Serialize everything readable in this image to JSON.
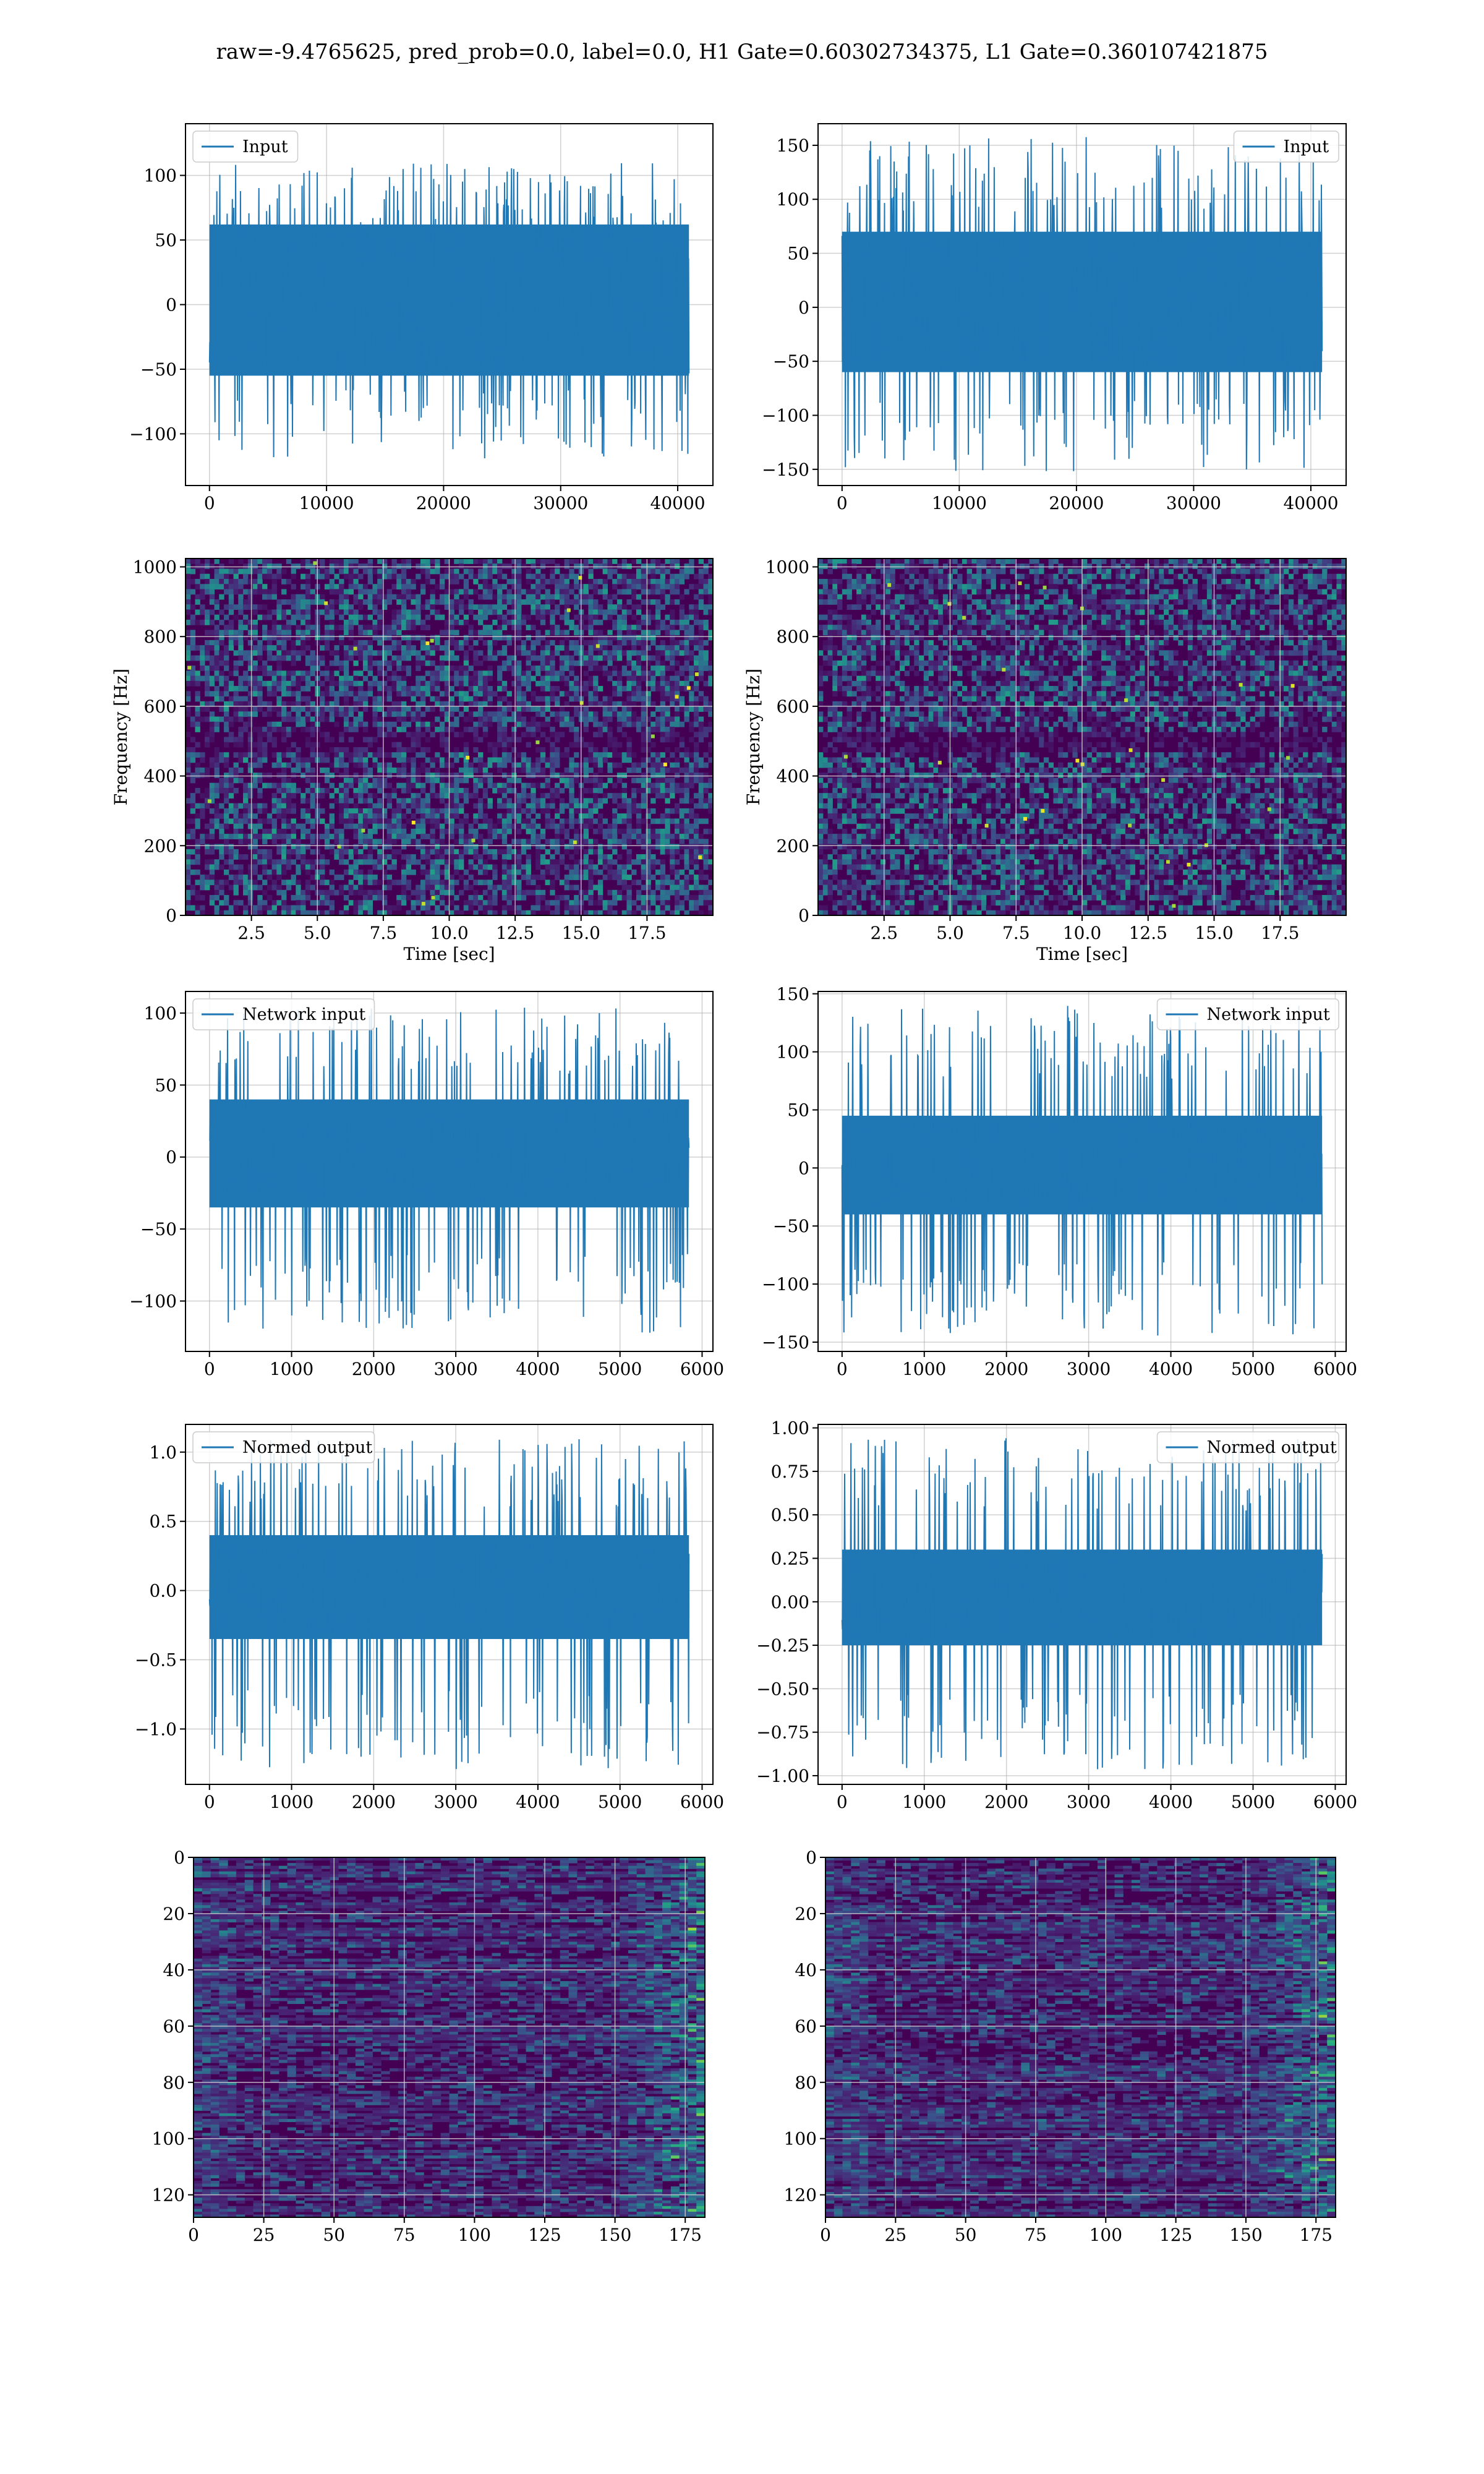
{
  "figure": {
    "title": "raw=-9.4765625, pred_prob=0.0, label=0.0, H1 Gate=0.60302734375, L1 Gate=0.360107421875"
  },
  "colors": {
    "line": "#1f77b4",
    "viridis_dark": "#440154",
    "viridis_mid": "#21918c",
    "viridis_bright": "#fde725",
    "grid": "#b0b0b0"
  },
  "chart_data": [
    {
      "id": "h1-input",
      "type": "line",
      "row": 1,
      "col": 1,
      "series": [
        {
          "name": "Input",
          "envelope_core": [
            -55,
            62
          ],
          "extreme_range": [
            -120,
            110
          ]
        }
      ],
      "x_count": 40960,
      "xlim": [
        -2048,
        43008
      ],
      "ylim": [
        -140,
        140
      ],
      "xticks": [
        0,
        10000,
        20000,
        30000,
        40000
      ],
      "yticks": [
        -100,
        -50,
        0,
        50,
        100
      ],
      "legend": "top-left",
      "grid": true,
      "xlabel": "",
      "ylabel": ""
    },
    {
      "id": "l1-input",
      "type": "line",
      "row": 1,
      "col": 2,
      "series": [
        {
          "name": "Input",
          "envelope_core": [
            -60,
            70
          ],
          "extreme_range": [
            -152,
            158
          ]
        }
      ],
      "x_count": 40960,
      "xlim": [
        -2048,
        43008
      ],
      "ylim": [
        -165,
        170
      ],
      "xticks": [
        0,
        10000,
        20000,
        30000,
        40000
      ],
      "yticks": [
        -150,
        -100,
        -50,
        0,
        50,
        100,
        150
      ],
      "legend": "top-right",
      "grid": true,
      "xlabel": "",
      "ylabel": ""
    },
    {
      "id": "h1-spectrogram",
      "type": "heatmap",
      "row": 2,
      "col": 1,
      "colormap": "viridis",
      "xlim": [
        0,
        20
      ],
      "ylim": [
        0,
        1024
      ],
      "xticks": [
        2.5,
        5.0,
        7.5,
        10.0,
        12.5,
        15.0,
        17.5
      ],
      "yticks": [
        0,
        200,
        400,
        600,
        800,
        1000
      ],
      "xlabel": "Time [sec]",
      "ylabel": "Frequency [Hz]",
      "grid": true
    },
    {
      "id": "l1-spectrogram",
      "type": "heatmap",
      "row": 2,
      "col": 2,
      "colormap": "viridis",
      "xlim": [
        0,
        20
      ],
      "ylim": [
        0,
        1024
      ],
      "xticks": [
        2.5,
        5.0,
        7.5,
        10.0,
        12.5,
        15.0,
        17.5
      ],
      "yticks": [
        0,
        200,
        400,
        600,
        800,
        1000
      ],
      "xlabel": "Time [sec]",
      "ylabel": "Frequency [Hz]",
      "grid": true
    },
    {
      "id": "h1-network-input",
      "type": "line",
      "row": 3,
      "col": 1,
      "series": [
        {
          "name": "Network input",
          "envelope_core": [
            -35,
            40
          ],
          "extreme_range": [
            -122,
            104
          ]
        }
      ],
      "x_count": 5840,
      "xlim": [
        -292,
        6132
      ],
      "ylim": [
        -135,
        115
      ],
      "xticks": [
        0,
        1000,
        2000,
        3000,
        4000,
        5000,
        6000
      ],
      "yticks": [
        -100,
        -50,
        0,
        50,
        100
      ],
      "legend": "top-left",
      "grid": true,
      "xlabel": "",
      "ylabel": ""
    },
    {
      "id": "l1-network-input",
      "type": "line",
      "row": 3,
      "col": 2,
      "series": [
        {
          "name": "Network input",
          "envelope_core": [
            -40,
            45
          ],
          "extreme_range": [
            -145,
            140
          ]
        }
      ],
      "x_count": 5840,
      "xlim": [
        -292,
        6132
      ],
      "ylim": [
        -158,
        152
      ],
      "xticks": [
        0,
        1000,
        2000,
        3000,
        4000,
        5000,
        6000
      ],
      "yticks": [
        -150,
        -100,
        -50,
        0,
        50,
        100,
        150
      ],
      "legend": "top-right",
      "grid": true,
      "xlabel": "",
      "ylabel": ""
    },
    {
      "id": "h1-normed-output",
      "type": "line",
      "row": 4,
      "col": 1,
      "series": [
        {
          "name": "Normed output",
          "envelope_core": [
            -0.35,
            0.4
          ],
          "extreme_range": [
            -1.3,
            1.1
          ]
        }
      ],
      "x_count": 5840,
      "xlim": [
        -292,
        6132
      ],
      "ylim": [
        -1.4,
        1.2
      ],
      "xticks": [
        0,
        1000,
        2000,
        3000,
        4000,
        5000,
        6000
      ],
      "yticks": [
        -1.0,
        -0.5,
        0.0,
        0.5,
        1.0
      ],
      "legend": "top-left",
      "grid": true,
      "xlabel": "",
      "ylabel": ""
    },
    {
      "id": "l1-normed-output",
      "type": "line",
      "row": 4,
      "col": 2,
      "series": [
        {
          "name": "Normed output",
          "envelope_core": [
            -0.25,
            0.3
          ],
          "extreme_range": [
            -0.97,
            0.95
          ]
        }
      ],
      "x_count": 5840,
      "xlim": [
        -292,
        6132
      ],
      "ylim": [
        -1.05,
        1.02
      ],
      "xticks": [
        0,
        1000,
        2000,
        3000,
        4000,
        5000,
        6000
      ],
      "yticks": [
        -1.0,
        -0.75,
        -0.5,
        -0.25,
        0.0,
        0.25,
        0.5,
        0.75,
        1.0
      ],
      "legend": "top-right",
      "grid": true,
      "xlabel": "",
      "ylabel": ""
    },
    {
      "id": "h1-feature-map",
      "type": "heatmap",
      "row": 5,
      "col": 1,
      "colormap": "viridis",
      "xlim": [
        0,
        182
      ],
      "ylim": [
        128,
        0
      ],
      "xticks": [
        0,
        25,
        50,
        75,
        100,
        125,
        150,
        175
      ],
      "yticks": [
        0,
        20,
        40,
        60,
        80,
        100,
        120
      ],
      "xlabel": "",
      "ylabel": "",
      "grid": true
    },
    {
      "id": "l1-feature-map",
      "type": "heatmap",
      "row": 5,
      "col": 2,
      "colormap": "viridis",
      "xlim": [
        0,
        182
      ],
      "ylim": [
        128,
        0
      ],
      "xticks": [
        0,
        25,
        50,
        75,
        100,
        125,
        150,
        175
      ],
      "yticks": [
        0,
        20,
        40,
        60,
        80,
        100,
        120
      ],
      "xlabel": "",
      "ylabel": "",
      "grid": true
    }
  ]
}
